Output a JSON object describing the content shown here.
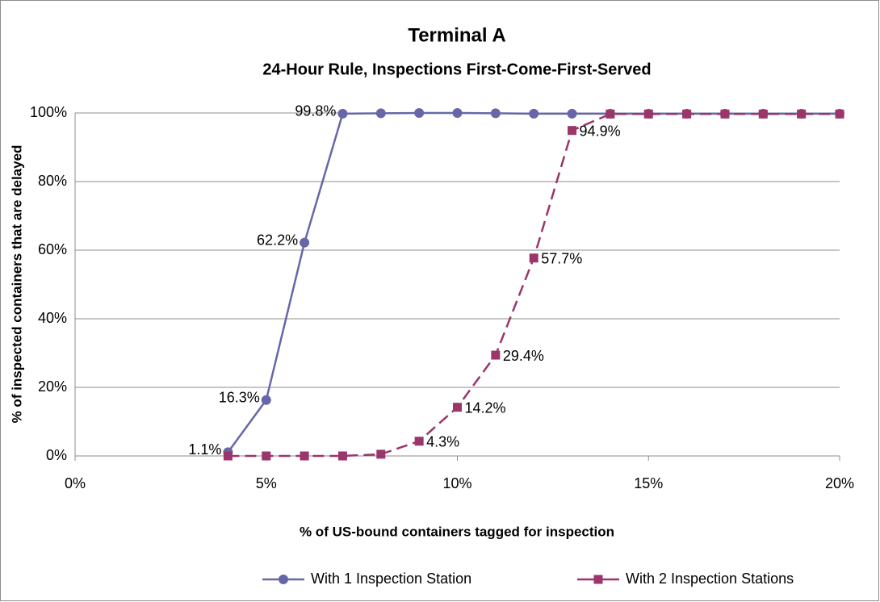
{
  "chart_data": {
    "type": "line",
    "title": "Terminal A",
    "subtitle": "24-Hour Rule, Inspections First-Come-First-Served",
    "x_label": "% of US-bound containers tagged for inspection",
    "y_label": "% of inspected containers that are delayed",
    "x": [
      4,
      5,
      6,
      7,
      8,
      9,
      10,
      11,
      12,
      13,
      14,
      15,
      16,
      17,
      18,
      19,
      20
    ],
    "series": [
      {
        "name": "With 1 Inspection Station",
        "color": "#6767a8",
        "marker": "circle",
        "line_style": "solid",
        "values": [
          1.1,
          16.3,
          62.2,
          99.8,
          99.9,
          100,
          100,
          99.9,
          99.8,
          99.8,
          99.8,
          99.8,
          99.8,
          99.8,
          99.8,
          99.8,
          99.8
        ],
        "value_labels": [
          "1.1%",
          "16.3%",
          "62.2%",
          "99.8%",
          null,
          null,
          null,
          null,
          null,
          null,
          null,
          null,
          null,
          null,
          null,
          null,
          null
        ]
      },
      {
        "name": "With 2 Inspection Stations",
        "color": "#9b356a",
        "marker": "square",
        "line_style": "dashed",
        "values": [
          0,
          0,
          0,
          0,
          0.5,
          4.3,
          14.2,
          29.4,
          57.7,
          94.9,
          99.7,
          99.7,
          99.7,
          99.7,
          99.7,
          99.7,
          99.7
        ],
        "value_labels": [
          null,
          null,
          null,
          null,
          null,
          "4.3%",
          "14.2%",
          "29.4%",
          "57.7%",
          "94.9%",
          null,
          null,
          null,
          null,
          null,
          null,
          null
        ]
      }
    ],
    "xlim": [
      0,
      20
    ],
    "xticks": [
      {
        "value": 0,
        "label": "0%"
      },
      {
        "value": 5,
        "label": "5%"
      },
      {
        "value": 10,
        "label": "10%"
      },
      {
        "value": 15,
        "label": "15%"
      },
      {
        "value": 20,
        "label": "20%"
      }
    ],
    "ylim": [
      0,
      100
    ],
    "yticks": [
      {
        "value": 0,
        "label": "0%"
      },
      {
        "value": 20,
        "label": "20%"
      },
      {
        "value": 40,
        "label": "40%"
      },
      {
        "value": 60,
        "label": "60%"
      },
      {
        "value": 80,
        "label": "80%"
      },
      {
        "value": 100,
        "label": "100%"
      }
    ],
    "grid": true,
    "legend": "bottom"
  }
}
